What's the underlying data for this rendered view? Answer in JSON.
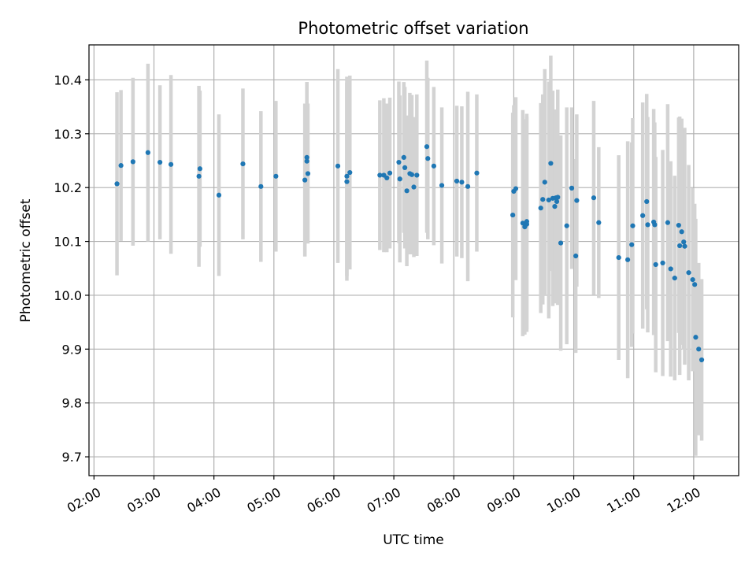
{
  "chart_data": {
    "type": "scatter",
    "title": "Photometric offset variation",
    "xlabel": "UTC time",
    "ylabel": "Photometric offset",
    "xlim": [
      "01:55",
      "12:45"
    ],
    "ylim": [
      9.665,
      10.465
    ],
    "grid": true,
    "x_ticks": [
      "02:00",
      "03:00",
      "04:00",
      "05:00",
      "06:00",
      "07:00",
      "08:00",
      "09:00",
      "10:00",
      "11:00",
      "12:00"
    ],
    "y_ticks": [
      9.7,
      9.8,
      9.9,
      10.0,
      10.1,
      10.2,
      10.3,
      10.4
    ],
    "y_tick_labels": [
      "9.7",
      "9.8",
      "9.9",
      "10.0",
      "10.1",
      "10.2",
      "10.3",
      "10.4"
    ],
    "colors": {
      "points": "#1f77b4",
      "error_bars": "#d3d3d3",
      "grid": "#b0b0b0"
    },
    "series": [
      {
        "x": [
          "02:23",
          "02:27",
          "02:39",
          "02:54",
          "03:06",
          "03:17",
          "03:45",
          "03:46",
          "04:05",
          "04:29",
          "04:47",
          "05:02",
          "05:31",
          "05:33",
          "05:33",
          "05:34",
          "06:04",
          "06:13",
          "06:13",
          "06:16",
          "06:46",
          "06:50",
          "06:53",
          "06:56",
          "07:05",
          "07:06",
          "07:10",
          "07:11",
          "07:13",
          "07:16",
          "07:18",
          "07:20",
          "07:23",
          "07:33",
          "07:34",
          "07:40",
          "07:48",
          "08:03",
          "08:08",
          "08:14",
          "08:23",
          "08:59",
          "09:00",
          "09:02",
          "09:09",
          "09:11",
          "09:13",
          "09:13",
          "09:27",
          "09:29",
          "09:31",
          "09:35",
          "09:37",
          "09:39",
          "09:41",
          "09:42",
          "09:43",
          "09:44",
          "09:47",
          "09:53",
          "09:58",
          "10:02",
          "10:03",
          "10:20",
          "10:25",
          "10:45",
          "10:54",
          "10:58",
          "10:59",
          "11:09",
          "11:13",
          "11:14",
          "11:20",
          "11:21",
          "11:22",
          "11:29",
          "11:34",
          "11:37",
          "11:41",
          "11:45",
          "11:46",
          "11:48",
          "11:50",
          "11:51",
          "11:55",
          "11:59",
          "12:01",
          "12:02",
          "12:05",
          "12:08"
        ],
        "y": [
          10.207,
          10.241,
          10.248,
          10.265,
          10.247,
          10.243,
          10.221,
          10.235,
          10.186,
          10.244,
          10.202,
          10.221,
          10.214,
          10.249,
          10.256,
          10.226,
          10.24,
          10.211,
          10.221,
          10.228,
          10.223,
          10.223,
          10.218,
          10.227,
          10.247,
          10.216,
          10.256,
          10.237,
          10.194,
          10.226,
          10.224,
          10.201,
          10.223,
          10.276,
          10.254,
          10.24,
          10.204,
          10.212,
          10.21,
          10.202,
          10.227,
          10.149,
          10.193,
          10.198,
          10.134,
          10.127,
          10.132,
          10.137,
          10.162,
          10.178,
          10.21,
          10.177,
          10.245,
          10.18,
          10.165,
          10.181,
          10.174,
          10.182,
          10.097,
          10.129,
          10.199,
          10.073,
          10.176,
          10.181,
          10.135,
          10.07,
          10.066,
          10.094,
          10.129,
          10.148,
          10.174,
          10.131,
          10.136,
          10.131,
          10.057,
          10.06,
          10.135,
          10.049,
          10.032,
          10.13,
          10.092,
          10.118,
          10.099,
          10.091,
          10.042,
          10.029,
          10.02,
          9.922,
          9.9,
          9.88
        ],
        "err": [
          0.17,
          0.14,
          0.156,
          0.165,
          0.143,
          0.166,
          0.168,
          0.145,
          0.15,
          0.14,
          0.14,
          0.14,
          0.142,
          0.147,
          0.14,
          0.13,
          0.18,
          0.184,
          0.185,
          0.18,
          0.139,
          0.143,
          0.138,
          0.14,
          0.15,
          0.155,
          0.14,
          0.15,
          0.14,
          0.15,
          0.148,
          0.13,
          0.15,
          0.16,
          0.15,
          0.147,
          0.145,
          0.14,
          0.141,
          0.176,
          0.146,
          0.19,
          0.16,
          0.17,
          0.21,
          0.2,
          0.2,
          0.2,
          0.195,
          0.195,
          0.21,
          0.22,
          0.2,
          0.2,
          0.18,
          0.16,
          0.16,
          0.2,
          0.2,
          0.22,
          0.15,
          0.18,
          0.16,
          0.18,
          0.14,
          0.19,
          0.22,
          0.19,
          0.2,
          0.21,
          0.2,
          0.2,
          0.21,
          0.19,
          0.2,
          0.21,
          0.22,
          0.2,
          0.19,
          0.2,
          0.24,
          0.21,
          0.2,
          0.22,
          0.2,
          0.17,
          0.15,
          0.22,
          0.16,
          0.15
        ]
      }
    ]
  }
}
